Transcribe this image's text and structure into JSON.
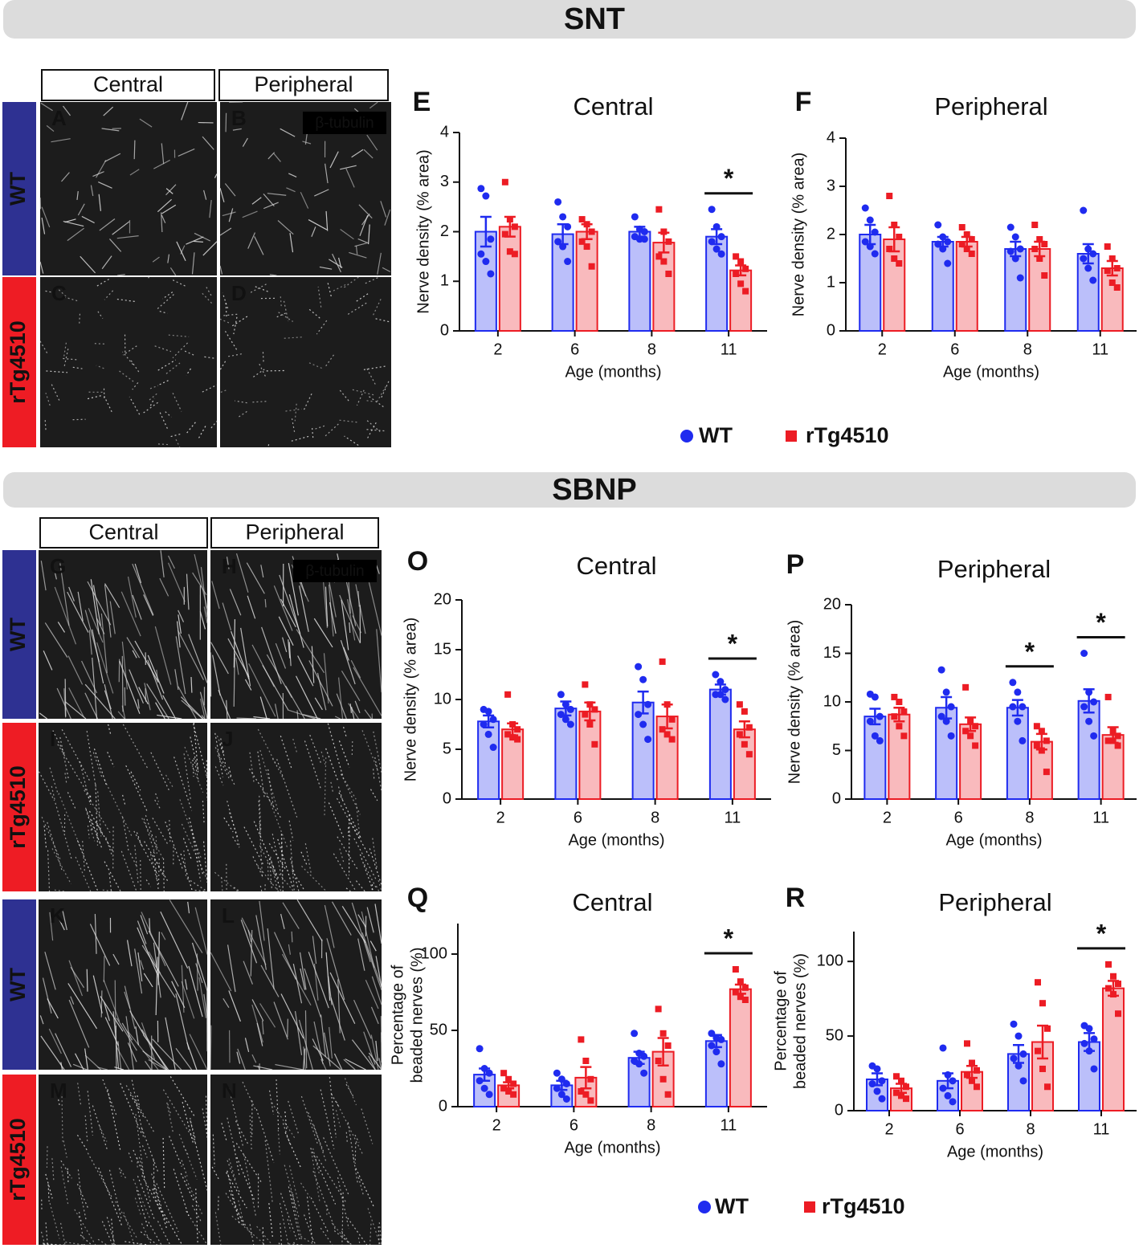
{
  "figure": {
    "sections": [
      {
        "title": "SNT",
        "columns": [
          "Central",
          "Peripheral"
        ],
        "rows": [
          "WT",
          "rTg4510"
        ],
        "panels": [
          [
            "A",
            "B"
          ],
          [
            "C",
            "D"
          ]
        ],
        "stain": "β-tubulin"
      },
      {
        "title": "SBNP",
        "columns": [
          "Central",
          "Peripheral"
        ],
        "rows": [
          "WT",
          "rTg4510",
          "WT",
          "rTg4510"
        ],
        "panels": [
          [
            "G",
            "H"
          ],
          [
            "I",
            "J"
          ],
          [
            "K",
            "L"
          ],
          [
            "M",
            "N"
          ]
        ],
        "stain": "β-tubulin"
      }
    ]
  },
  "chart_data": [
    {
      "type": "bar",
      "panel": "E",
      "title": "Central",
      "xlabel": "Age (months)",
      "ylabel": [
        "Nerve density (% area)"
      ],
      "categories": [
        "2",
        "6",
        "8",
        "11"
      ],
      "ylim": [
        0,
        4
      ],
      "yticks": [
        0,
        1,
        2,
        3,
        4
      ],
      "series": [
        {
          "name": "WT",
          "color": "#1f2bef",
          "marker": "circle",
          "values": [
            2.0,
            1.95,
            2.0,
            1.9
          ],
          "errors": [
            0.3,
            0.2,
            0.1,
            0.15
          ],
          "points": [
            [
              2.87,
              2.72,
              1.85,
              1.55,
              1.4,
              1.15
            ],
            [
              2.6,
              2.3,
              2.1,
              1.8,
              1.7,
              1.4
            ],
            [
              2.3,
              2.05,
              2.0,
              1.9,
              1.85,
              1.85
            ],
            [
              2.45,
              2.1,
              1.9,
              1.8,
              1.65,
              1.55
            ]
          ]
        },
        {
          "name": "rTg4510",
          "color": "#ec1c24",
          "marker": "square",
          "values": [
            2.1,
            2.0,
            1.78,
            1.22
          ],
          "errors": [
            0.2,
            0.15,
            0.2,
            0.1
          ],
          "points": [
            [
              3.0,
              2.25,
              2.1,
              1.95,
              1.6,
              1.55
            ],
            [
              2.25,
              2.15,
              2.0,
              1.8,
              1.7,
              1.3
            ],
            [
              2.45,
              2.0,
              1.8,
              1.5,
              1.4,
              1.15
            ],
            [
              1.5,
              1.4,
              1.25,
              1.15,
              0.95,
              0.8
            ]
          ]
        }
      ],
      "significance": [
        {
          "at": "11",
          "label": "*"
        }
      ]
    },
    {
      "type": "bar",
      "panel": "F",
      "title": "Peripheral",
      "xlabel": "Age (months)",
      "ylabel": [
        "Nerve density (% area)"
      ],
      "categories": [
        "2",
        "6",
        "8",
        "11"
      ],
      "ylim": [
        0,
        4
      ],
      "yticks": [
        0,
        1,
        2,
        3,
        4
      ],
      "series": [
        {
          "name": "WT",
          "color": "#1f2bef",
          "marker": "circle",
          "values": [
            2.0,
            1.85,
            1.7,
            1.6
          ],
          "errors": [
            0.2,
            0.1,
            0.15,
            0.2
          ],
          "points": [
            [
              2.55,
              2.3,
              2.05,
              1.85,
              1.75,
              1.6
            ],
            [
              2.2,
              1.95,
              1.85,
              1.8,
              1.7,
              1.4
            ],
            [
              2.15,
              1.95,
              1.7,
              1.65,
              1.5,
              1.1
            ],
            [
              2.5,
              1.7,
              1.6,
              1.5,
              1.3,
              1.05
            ]
          ]
        },
        {
          "name": "rTg4510",
          "color": "#ec1c24",
          "marker": "square",
          "values": [
            1.9,
            1.85,
            1.7,
            1.3
          ],
          "errors": [
            0.25,
            0.1,
            0.15,
            0.15
          ],
          "points": [
            [
              2.8,
              2.2,
              1.95,
              1.7,
              1.5,
              1.4
            ],
            [
              2.15,
              2.0,
              1.9,
              1.8,
              1.7,
              1.6
            ],
            [
              2.2,
              1.9,
              1.8,
              1.7,
              1.5,
              1.15
            ],
            [
              1.75,
              1.5,
              1.3,
              1.25,
              1.0,
              0.9
            ]
          ]
        }
      ],
      "significance": []
    },
    {
      "type": "bar",
      "panel": "O",
      "title": "Central",
      "xlabel": "Age (months)",
      "ylabel": [
        "Nerve density (% area)"
      ],
      "categories": [
        "2",
        "6",
        "8",
        "11"
      ],
      "ylim": [
        0,
        20
      ],
      "yticks": [
        0,
        5,
        10,
        15,
        20
      ],
      "series": [
        {
          "name": "WT",
          "color": "#1f2bef",
          "marker": "circle",
          "values": [
            7.8,
            9.1,
            9.7,
            11.0
          ],
          "errors": [
            0.6,
            0.7,
            1.1,
            0.5
          ],
          "points": [
            [
              9,
              8.8,
              8,
              7.5,
              6.5,
              5.2
            ],
            [
              10.5,
              9.5,
              9,
              8.5,
              8,
              7.5
            ],
            [
              13.3,
              12,
              9.5,
              8.5,
              7.5,
              6.0
            ],
            [
              12.5,
              11.8,
              11,
              10.5,
              10.5,
              10
            ]
          ]
        },
        {
          "name": "rTg4510",
          "color": "#ec1c24",
          "marker": "square",
          "values": [
            7.0,
            8.8,
            8.3,
            7.0
          ],
          "errors": [
            0.6,
            0.9,
            1.2,
            0.8
          ],
          "points": [
            [
              10.5,
              7.5,
              7,
              6.5,
              6.2,
              6
            ],
            [
              11.5,
              9.5,
              9,
              8.5,
              7.5,
              5.5
            ],
            [
              13.8,
              9.5,
              8,
              7,
              6.5,
              6
            ],
            [
              9.5,
              8.8,
              7.2,
              6.5,
              5.5,
              4.5
            ]
          ]
        }
      ],
      "significance": [
        {
          "at": "11",
          "label": "*"
        }
      ]
    },
    {
      "type": "bar",
      "panel": "P",
      "title": "Peripheral",
      "xlabel": "Age (months)",
      "ylabel": [
        "Nerve density (% area)"
      ],
      "categories": [
        "2",
        "6",
        "8",
        "11"
      ],
      "ylim": [
        0,
        20
      ],
      "yticks": [
        0,
        5,
        10,
        15,
        20
      ],
      "series": [
        {
          "name": "WT",
          "color": "#1f2bef",
          "marker": "circle",
          "values": [
            8.5,
            9.4,
            9.4,
            10.1
          ],
          "errors": [
            0.8,
            1.1,
            0.8,
            1.2
          ],
          "points": [
            [
              10.8,
              10.5,
              8.5,
              8,
              6.5,
              6
            ],
            [
              13.3,
              11,
              9.5,
              8.5,
              8,
              6.5
            ],
            [
              12,
              11,
              9.5,
              9.5,
              8,
              6
            ],
            [
              15,
              11,
              10,
              9.5,
              8,
              6.5
            ]
          ]
        },
        {
          "name": "rTg4510",
          "color": "#ec1c24",
          "marker": "square",
          "values": [
            8.7,
            7.7,
            5.9,
            6.6
          ],
          "errors": [
            0.7,
            0.7,
            0.8,
            0.8
          ],
          "points": [
            [
              10.5,
              10,
              9,
              8.5,
              7.5,
              6.5
            ],
            [
              11.5,
              8,
              7.5,
              7,
              6.5,
              5.5
            ],
            [
              7.5,
              7,
              6,
              5.5,
              5,
              2.8
            ],
            [
              10.5,
              7,
              6.5,
              6,
              6,
              5.5
            ]
          ]
        }
      ],
      "significance": [
        {
          "at": "8",
          "label": "*"
        },
        {
          "at": "11",
          "label": "*"
        }
      ]
    },
    {
      "type": "bar",
      "panel": "Q",
      "title": "Central",
      "xlabel": "Age (months)",
      "ylabel": [
        "Percentage of",
        "beaded nerves (%)"
      ],
      "categories": [
        "2",
        "6",
        "8",
        "11"
      ],
      "ylim": [
        0,
        120
      ],
      "yticks": [
        0,
        50,
        100
      ],
      "series": [
        {
          "name": "WT",
          "color": "#1f2bef",
          "marker": "circle",
          "values": [
            21,
            14,
            32,
            43
          ],
          "errors": [
            4,
            3,
            4,
            4
          ],
          "points": [
            [
              38,
              25,
              22,
              17,
              12,
              8
            ],
            [
              22,
              18,
              15,
              12,
              8,
              5
            ],
            [
              48,
              35,
              33,
              30,
              28,
              22
            ],
            [
              48,
              45,
              44,
              40,
              36,
              28
            ]
          ]
        },
        {
          "name": "rTg4510",
          "color": "#ec1c24",
          "marker": "square",
          "values": [
            14,
            19,
            36,
            77
          ],
          "errors": [
            2,
            7,
            9,
            3
          ],
          "points": [
            [
              22,
              18,
              15,
              12,
              10,
              8
            ],
            [
              44,
              30,
              18,
              10,
              8,
              4
            ],
            [
              64,
              48,
              40,
              30,
              18,
              8
            ],
            [
              90,
              82,
              78,
              75,
              72,
              70
            ]
          ]
        }
      ],
      "significance": [
        {
          "at": "11",
          "label": "*"
        }
      ]
    },
    {
      "type": "bar",
      "panel": "R",
      "title": "Peripheral",
      "xlabel": "Age (months)",
      "ylabel": [
        "Percentage of",
        "beaded nerves (%)"
      ],
      "categories": [
        "2",
        "6",
        "8",
        "11"
      ],
      "ylim": [
        0,
        120
      ],
      "yticks": [
        0,
        50,
        100
      ],
      "series": [
        {
          "name": "WT",
          "color": "#1f2bef",
          "marker": "circle",
          "values": [
            21,
            20,
            38,
            46
          ],
          "errors": [
            4,
            5,
            6,
            6
          ],
          "points": [
            [
              30,
              28,
              20,
              18,
              13,
              8
            ],
            [
              42,
              24,
              20,
              15,
              10,
              6
            ],
            [
              58,
              50,
              38,
              35,
              30,
              20
            ],
            [
              57,
              55,
              48,
              45,
              40,
              28
            ]
          ]
        },
        {
          "name": "rTg4510",
          "color": "#ec1c24",
          "marker": "square",
          "values": [
            15,
            26,
            46,
            82
          ],
          "errors": [
            3,
            4,
            11,
            5
          ],
          "points": [
            [
              23,
              20,
              16,
              12,
              10,
              8
            ],
            [
              45,
              32,
              27,
              24,
              20,
              16
            ],
            [
              86,
              72,
              55,
              40,
              28,
              16
            ],
            [
              98,
              90,
              85,
              82,
              78,
              65
            ]
          ]
        }
      ],
      "significance": [
        {
          "at": "11",
          "label": "*"
        }
      ]
    }
  ]
}
